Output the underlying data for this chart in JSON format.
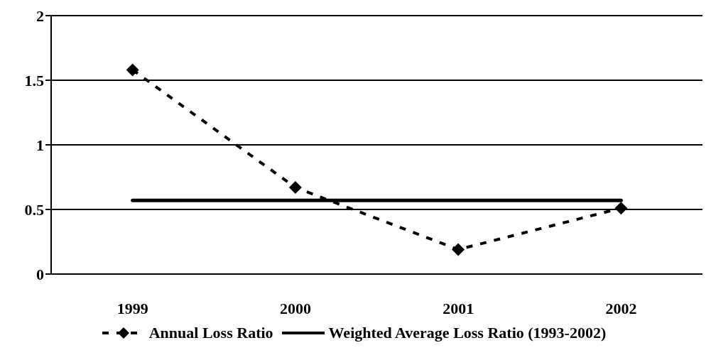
{
  "chart_data": {
    "type": "line",
    "categories": [
      "1999",
      "2000",
      "2001",
      "2002"
    ],
    "series": [
      {
        "name": "Annual Loss Ratio",
        "color": "#000000",
        "values": [
          1.58,
          0.67,
          0.19,
          0.51
        ],
        "marker": "diamond",
        "line_style": "dashed"
      },
      {
        "name": "Weighted Average Loss Ratio (1993-2002)",
        "color": "#000000",
        "values": [
          0.57,
          0.57,
          0.57,
          0.57
        ],
        "marker": "none",
        "line_style": "solid"
      }
    ],
    "ylim": [
      0,
      2
    ],
    "yticks": [
      0,
      0.5,
      1,
      1.5,
      2
    ],
    "grid": "y",
    "legend": "bottom"
  }
}
